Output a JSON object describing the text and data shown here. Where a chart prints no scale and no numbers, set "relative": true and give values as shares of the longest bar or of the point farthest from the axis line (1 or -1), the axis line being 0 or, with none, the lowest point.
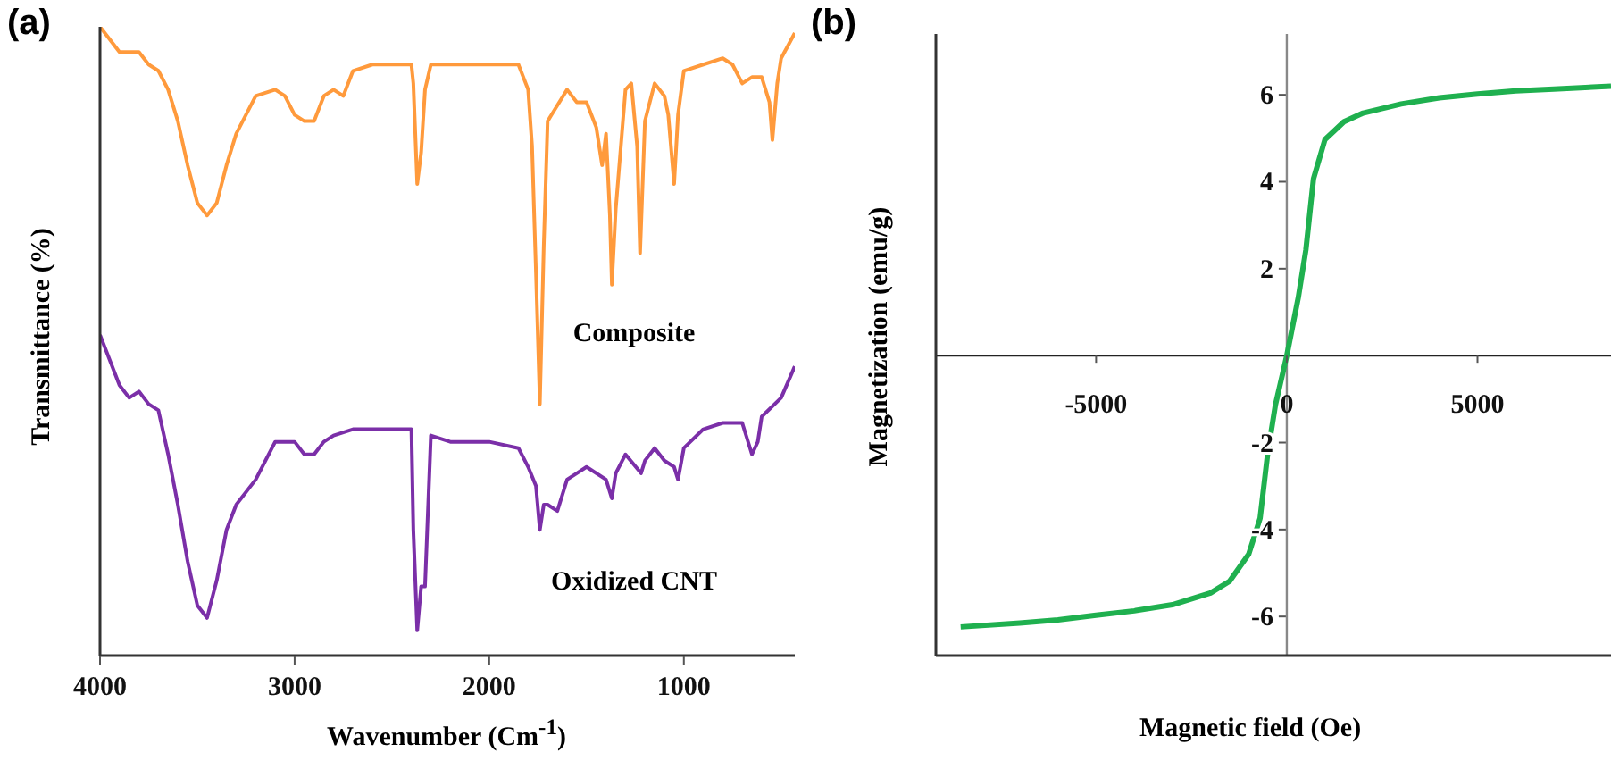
{
  "chart_data": [
    {
      "type": "line",
      "title": "(a)",
      "xlabel": "Wavenumber (Cm$^{-1}$)",
      "ylabel": "Transmittance (%)",
      "relative": true,
      "xlim": [
        4000,
        430
      ],
      "xticks": [
        4000,
        3000,
        2000,
        1000
      ],
      "series": [
        {
          "name": "Composite",
          "color": "#ff9a3c",
          "x": [
            4000,
            3900,
            3800,
            3750,
            3700,
            3650,
            3600,
            3550,
            3500,
            3450,
            3400,
            3350,
            3300,
            3200,
            3100,
            3050,
            3000,
            2950,
            2900,
            2850,
            2800,
            2750,
            2700,
            2600,
            2400,
            2390,
            2370,
            2350,
            2330,
            2300,
            2000,
            1850,
            1800,
            1780,
            1760,
            1740,
            1720,
            1700,
            1680,
            1600,
            1550,
            1500,
            1450,
            1420,
            1400,
            1380,
            1370,
            1350,
            1300,
            1270,
            1240,
            1225,
            1200,
            1150,
            1100,
            1080,
            1050,
            1030,
            1000,
            900,
            800,
            750,
            700,
            650,
            600,
            560,
            545,
            520,
            500,
            430
          ],
          "values": [
            1.0,
            0.96,
            0.96,
            0.94,
            0.93,
            0.9,
            0.85,
            0.78,
            0.72,
            0.7,
            0.72,
            0.78,
            0.83,
            0.89,
            0.9,
            0.89,
            0.86,
            0.85,
            0.85,
            0.89,
            0.9,
            0.89,
            0.93,
            0.94,
            0.94,
            0.91,
            0.75,
            0.8,
            0.9,
            0.94,
            0.94,
            0.94,
            0.9,
            0.81,
            0.61,
            0.4,
            0.65,
            0.85,
            0.86,
            0.9,
            0.88,
            0.88,
            0.84,
            0.78,
            0.83,
            0.7,
            0.59,
            0.71,
            0.9,
            0.91,
            0.81,
            0.64,
            0.85,
            0.91,
            0.89,
            0.86,
            0.75,
            0.86,
            0.93,
            0.94,
            0.95,
            0.94,
            0.91,
            0.92,
            0.92,
            0.88,
            0.82,
            0.91,
            0.95,
            0.99
          ]
        },
        {
          "name": "Oxidized CNT",
          "color": "#7b2fa8",
          "x": [
            4000,
            3900,
            3850,
            3800,
            3750,
            3700,
            3650,
            3600,
            3550,
            3500,
            3450,
            3400,
            3350,
            3300,
            3200,
            3100,
            3000,
            2950,
            2900,
            2850,
            2800,
            2700,
            2600,
            2400,
            2390,
            2370,
            2350,
            2330,
            2300,
            2200,
            2000,
            1850,
            1800,
            1760,
            1740,
            1720,
            1700,
            1650,
            1600,
            1550,
            1500,
            1400,
            1370,
            1350,
            1300,
            1220,
            1200,
            1150,
            1100,
            1050,
            1030,
            1000,
            900,
            800,
            700,
            650,
            620,
            600,
            500,
            430
          ],
          "values": [
            0.51,
            0.43,
            0.41,
            0.42,
            0.4,
            0.39,
            0.32,
            0.24,
            0.15,
            0.08,
            0.06,
            0.12,
            0.2,
            0.24,
            0.28,
            0.34,
            0.34,
            0.32,
            0.32,
            0.34,
            0.35,
            0.36,
            0.36,
            0.36,
            0.2,
            0.04,
            0.11,
            0.11,
            0.35,
            0.34,
            0.34,
            0.33,
            0.3,
            0.27,
            0.2,
            0.24,
            0.24,
            0.23,
            0.28,
            0.29,
            0.3,
            0.28,
            0.25,
            0.29,
            0.32,
            0.29,
            0.31,
            0.33,
            0.31,
            0.3,
            0.28,
            0.33,
            0.36,
            0.37,
            0.37,
            0.32,
            0.34,
            0.38,
            0.41,
            0.46
          ]
        }
      ]
    },
    {
      "type": "line",
      "title": "(b)",
      "xlabel": "Magnetic field (Oe)",
      "ylabel": "Magnetization (emu/g)",
      "xlim": [
        -9200,
        8500
      ],
      "ylim": [
        -6.9,
        7.4
      ],
      "xticks": [
        -5000,
        0,
        5000
      ],
      "yticks": [
        -6,
        -4,
        -2,
        2,
        4,
        6
      ],
      "series": [
        {
          "color": "#1fb04f",
          "x": [
            -8550,
            -7000,
            -6000,
            -5000,
            -4000,
            -3000,
            -2000,
            -1500,
            -1000,
            -700,
            -500,
            -300,
            0,
            300,
            500,
            700,
            1000,
            1500,
            2000,
            3000,
            4000,
            5000,
            6000,
            7000,
            8500
          ],
          "values": [
            -6.24,
            -6.15,
            -6.08,
            -5.97,
            -5.87,
            -5.73,
            -5.46,
            -5.19,
            -4.57,
            -3.74,
            -2.24,
            -1.14,
            0,
            1.33,
            2.43,
            4.07,
            4.97,
            5.38,
            5.58,
            5.79,
            5.93,
            6.02,
            6.09,
            6.13,
            6.2
          ]
        }
      ]
    }
  ]
}
